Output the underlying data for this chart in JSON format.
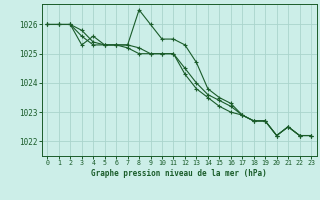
{
  "title": "Graphe pression niveau de la mer (hPa)",
  "background_color": "#cceee8",
  "grid_color": "#aad4cc",
  "line_color": "#1a5c2a",
  "xlim": [
    -0.5,
    23.5
  ],
  "ylim": [
    1021.5,
    1026.7
  ],
  "yticks": [
    1022,
    1023,
    1024,
    1025,
    1026
  ],
  "xticks": [
    0,
    1,
    2,
    3,
    4,
    5,
    6,
    7,
    8,
    9,
    10,
    11,
    12,
    13,
    14,
    15,
    16,
    17,
    18,
    19,
    20,
    21,
    22,
    23
  ],
  "series": [
    [
      1026.0,
      1026.0,
      1026.0,
      1025.3,
      1025.6,
      1025.3,
      1025.3,
      1025.3,
      1026.5,
      1026.0,
      1025.5,
      1025.5,
      1025.3,
      1024.7,
      1023.8,
      1023.5,
      1023.3,
      1022.9,
      1022.7,
      1022.7,
      1022.2,
      1022.5,
      1022.2,
      1022.2
    ],
    [
      1026.0,
      1026.0,
      1026.0,
      1025.6,
      1025.3,
      1025.3,
      1025.3,
      1025.2,
      1025.0,
      1025.0,
      1025.0,
      1025.0,
      1024.5,
      1024.0,
      1023.6,
      1023.4,
      1023.2,
      1022.9,
      1022.7,
      1022.7,
      1022.2,
      1022.5,
      1022.2,
      1022.2
    ],
    [
      1026.0,
      1026.0,
      1026.0,
      1025.8,
      1025.4,
      1025.3,
      1025.3,
      1025.3,
      1025.2,
      1025.0,
      1025.0,
      1025.0,
      1024.3,
      1023.8,
      1023.5,
      1023.2,
      1023.0,
      1022.9,
      1022.7,
      1022.7,
      1022.2,
      1022.5,
      1022.2,
      1022.2
    ]
  ]
}
